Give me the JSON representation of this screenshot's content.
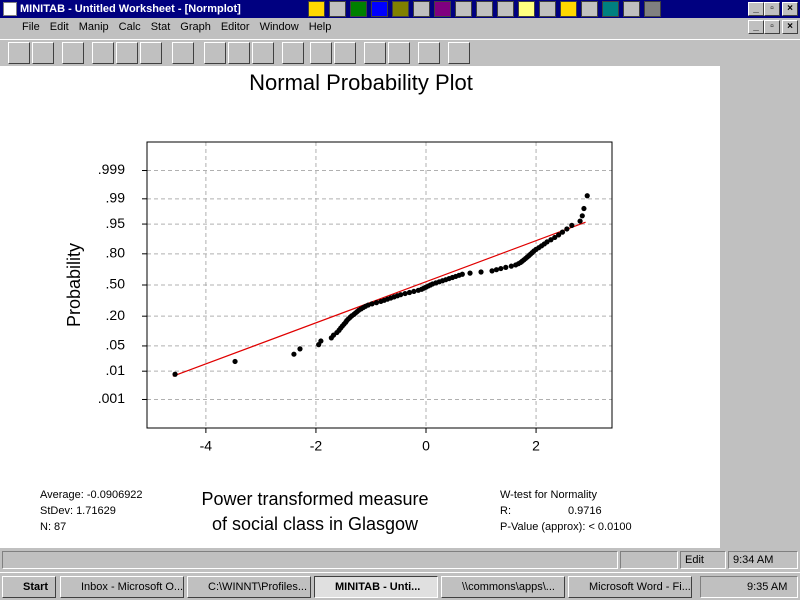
{
  "window": {
    "title": "MINITAB - Untitled Worksheet - [Normplot]"
  },
  "menu": [
    "File",
    "Edit",
    "Manip",
    "Calc",
    "Stat",
    "Graph",
    "Editor",
    "Window",
    "Help"
  ],
  "chart_data": {
    "type": "scatter",
    "title": "Normal Probability Plot",
    "xlabel": [
      "Power transformed measure",
      "of social class in Glasgow"
    ],
    "ylabel": "Probability",
    "yscale": "normal-probability",
    "grid": true,
    "xlim": [
      -5.07,
      3.38
    ],
    "xticks": [
      -4,
      -2,
      0,
      2
    ],
    "ylim": [
      5.67e-05,
      0.9999433
    ],
    "yticks": [
      {
        "value": 0.999,
        "label": ".999"
      },
      {
        "value": 0.99,
        "label": ".99"
      },
      {
        "value": 0.95,
        "label": ".95"
      },
      {
        "value": 0.8,
        "label": ".80"
      },
      {
        "value": 0.5,
        "label": ".50"
      },
      {
        "value": 0.2,
        "label": ".20"
      },
      {
        "value": 0.05,
        "label": ".05"
      },
      {
        "value": 0.01,
        "label": ".01"
      },
      {
        "value": 0.001,
        "label": ".001"
      }
    ],
    "x": [
      -4.56,
      -3.47,
      -2.4,
      -2.29,
      -1.95,
      -1.91,
      -1.72,
      -1.68,
      -1.62,
      -1.58,
      -1.55,
      -1.52,
      -1.49,
      -1.46,
      -1.44,
      -1.41,
      -1.38,
      -1.35,
      -1.31,
      -1.28,
      -1.25,
      -1.22,
      -1.18,
      -1.14,
      -1.1,
      -1.05,
      -0.98,
      -0.9,
      -0.82,
      -0.76,
      -0.7,
      -0.64,
      -0.58,
      -0.52,
      -0.46,
      -0.38,
      -0.3,
      -0.22,
      -0.14,
      -0.08,
      -0.04,
      0.0,
      0.04,
      0.08,
      0.12,
      0.18,
      0.24,
      0.3,
      0.36,
      0.42,
      0.48,
      0.54,
      0.6,
      0.66,
      0.8,
      1.0,
      1.2,
      1.28,
      1.36,
      1.45,
      1.55,
      1.63,
      1.68,
      1.72,
      1.75,
      1.78,
      1.81,
      1.84,
      1.87,
      1.9,
      1.93,
      1.96,
      2.0,
      2.05,
      2.1,
      2.15,
      2.2,
      2.27,
      2.34,
      2.41,
      2.48,
      2.56,
      2.65,
      2.8,
      2.84,
      2.87,
      2.93
    ],
    "series": [
      {
        "color": "#000000",
        "values": [
          0.008,
          0.0195,
          0.0309,
          0.0423,
          0.0538,
          0.0652,
          0.0767,
          0.0881,
          0.0995,
          0.111,
          0.1224,
          0.1339,
          0.1453,
          0.1568,
          0.1682,
          0.1796,
          0.1911,
          0.2025,
          0.214,
          0.2254,
          0.2368,
          0.2483,
          0.2597,
          0.2712,
          0.2826,
          0.2941,
          0.3055,
          0.3169,
          0.3284,
          0.3398,
          0.3513,
          0.3627,
          0.3741,
          0.3856,
          0.397,
          0.4085,
          0.4199,
          0.4314,
          0.4428,
          0.4542,
          0.4657,
          0.4771,
          0.4886,
          0.5,
          0.5114,
          0.5229,
          0.5343,
          0.5458,
          0.5572,
          0.5686,
          0.5801,
          0.5915,
          0.603,
          0.6144,
          0.6259,
          0.6373,
          0.6487,
          0.6602,
          0.6716,
          0.683,
          0.6945,
          0.7059,
          0.7174,
          0.7288,
          0.7403,
          0.7517,
          0.7632,
          0.7746,
          0.786,
          0.7975,
          0.8089,
          0.8204,
          0.8318,
          0.8432,
          0.8547,
          0.8661,
          0.8776,
          0.889,
          0.9005,
          0.9119,
          0.9233,
          0.9348,
          0.9462,
          0.9577,
          0.9691,
          0.9805,
          0.992
        ]
      }
    ],
    "fit_line": {
      "color": "#e00000",
      "x": [
        -4.6,
        2.9
      ],
      "values": [
        0.0069,
        0.955
      ]
    },
    "stats_left": [
      "Average: -0.0906922",
      "StDev: 1.71629",
      "N: 87"
    ],
    "stats_right": [
      "W-test for Normality",
      "R:",
      "0.9716",
      "P-Value (approx): < 0.0100"
    ]
  },
  "statusbar": {
    "mode": "Edit",
    "time": "9:34 AM"
  },
  "taskbar": {
    "start": "Start",
    "tasks": [
      "Inbox - Microsoft O...",
      "C:\\WINNT\\Profiles...",
      "MINITAB - Unti...",
      "\\\\commons\\apps\\...",
      "Microsoft Word - Fi..."
    ],
    "clock": "9:35 AM"
  }
}
